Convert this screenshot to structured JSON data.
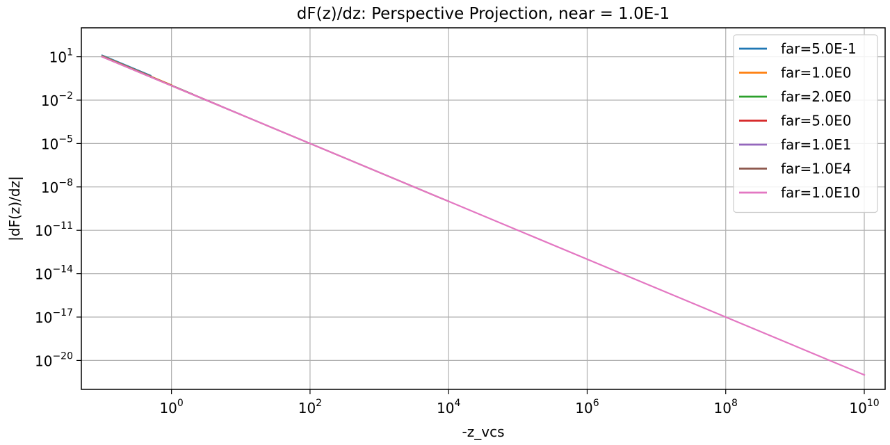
{
  "chart_data": {
    "type": "line",
    "title": "dF(z)/dz: Perspective Projection, near = 1.0E-1",
    "xlabel": "-z_vcs",
    "ylabel": "|dF(z)/dz|",
    "xscale": "log",
    "yscale": "log",
    "xlim": [
      0.05,
      20000000000
    ],
    "ylim": [
      1e-22,
      1000
    ],
    "grid": true,
    "legend_position": "upper-right",
    "x_ticks": [
      {
        "base": "10",
        "exp": "0",
        "value": 1
      },
      {
        "base": "10",
        "exp": "2",
        "value": 100
      },
      {
        "base": "10",
        "exp": "4",
        "value": 10000
      },
      {
        "base": "10",
        "exp": "6",
        "value": 1000000
      },
      {
        "base": "10",
        "exp": "8",
        "value": 100000000
      },
      {
        "base": "10",
        "exp": "10",
        "value": 10000000000
      }
    ],
    "y_ticks": [
      {
        "base": "10",
        "exp": "1",
        "value": 10
      },
      {
        "base": "10",
        "exp": "−2",
        "value": 0.01
      },
      {
        "base": "10",
        "exp": "−5",
        "value": 1e-05
      },
      {
        "base": "10",
        "exp": "−8",
        "value": 1e-08
      },
      {
        "base": "10",
        "exp": "−11",
        "value": 1e-11
      },
      {
        "base": "10",
        "exp": "−14",
        "value": 1e-14
      },
      {
        "base": "10",
        "exp": "−17",
        "value": 1e-17
      },
      {
        "base": "10",
        "exp": "−20",
        "value": 1e-20
      }
    ],
    "series": [
      {
        "name": "far=5.0E-1",
        "color": "#1f77b4",
        "x": [
          0.1,
          0.5
        ],
        "y": [
          12.5,
          0.5
        ]
      },
      {
        "name": "far=1.0E0",
        "color": "#ff7f0e",
        "x": [
          0.1,
          1
        ],
        "y": [
          11.1,
          0.111
        ]
      },
      {
        "name": "far=2.0E0",
        "color": "#2ca02c",
        "x": [
          0.1,
          2
        ],
        "y": [
          10.5,
          0.0263
        ]
      },
      {
        "name": "far=5.0E0",
        "color": "#d62728",
        "x": [
          0.1,
          5
        ],
        "y": [
          10.2,
          0.00408
        ]
      },
      {
        "name": "far=1.0E1",
        "color": "#9467bd",
        "x": [
          0.1,
          10
        ],
        "y": [
          10.1,
          0.00101
        ]
      },
      {
        "name": "far=1.0E4",
        "color": "#8c564b",
        "x": [
          0.1,
          10000
        ],
        "y": [
          10.0,
          1e-09
        ]
      },
      {
        "name": "far=1.0E10",
        "color": "#e377c2",
        "x": [
          0.1,
          10000000000
        ],
        "y": [
          10.0,
          1e-21
        ]
      }
    ]
  }
}
